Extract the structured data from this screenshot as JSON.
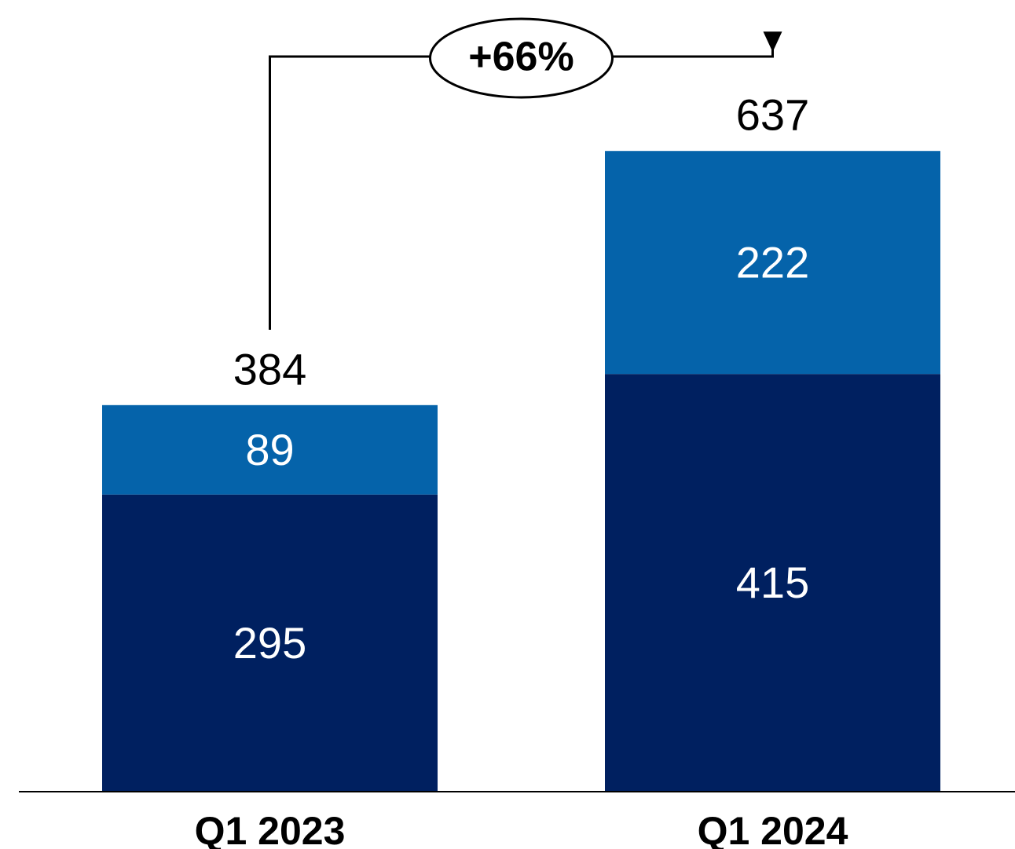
{
  "chart_data": {
    "type": "bar",
    "stacked": true,
    "categories": [
      "Q1 2023",
      "Q1 2024"
    ],
    "series": [
      {
        "values": [
          295,
          415
        ],
        "color": "#002060"
      },
      {
        "values": [
          89,
          222
        ],
        "color": "#0563AA"
      }
    ],
    "totals": [
      384,
      637
    ],
    "total_labels": [
      "384",
      "637"
    ],
    "segment_labels": [
      [
        "295",
        "415"
      ],
      [
        "89",
        "222"
      ]
    ],
    "ylim": [
      0,
      670
    ],
    "grid": false,
    "legend": "none",
    "annotations": [
      {
        "text": "+66%",
        "from": "Q1 2023",
        "to": "Q1 2024"
      }
    ]
  }
}
